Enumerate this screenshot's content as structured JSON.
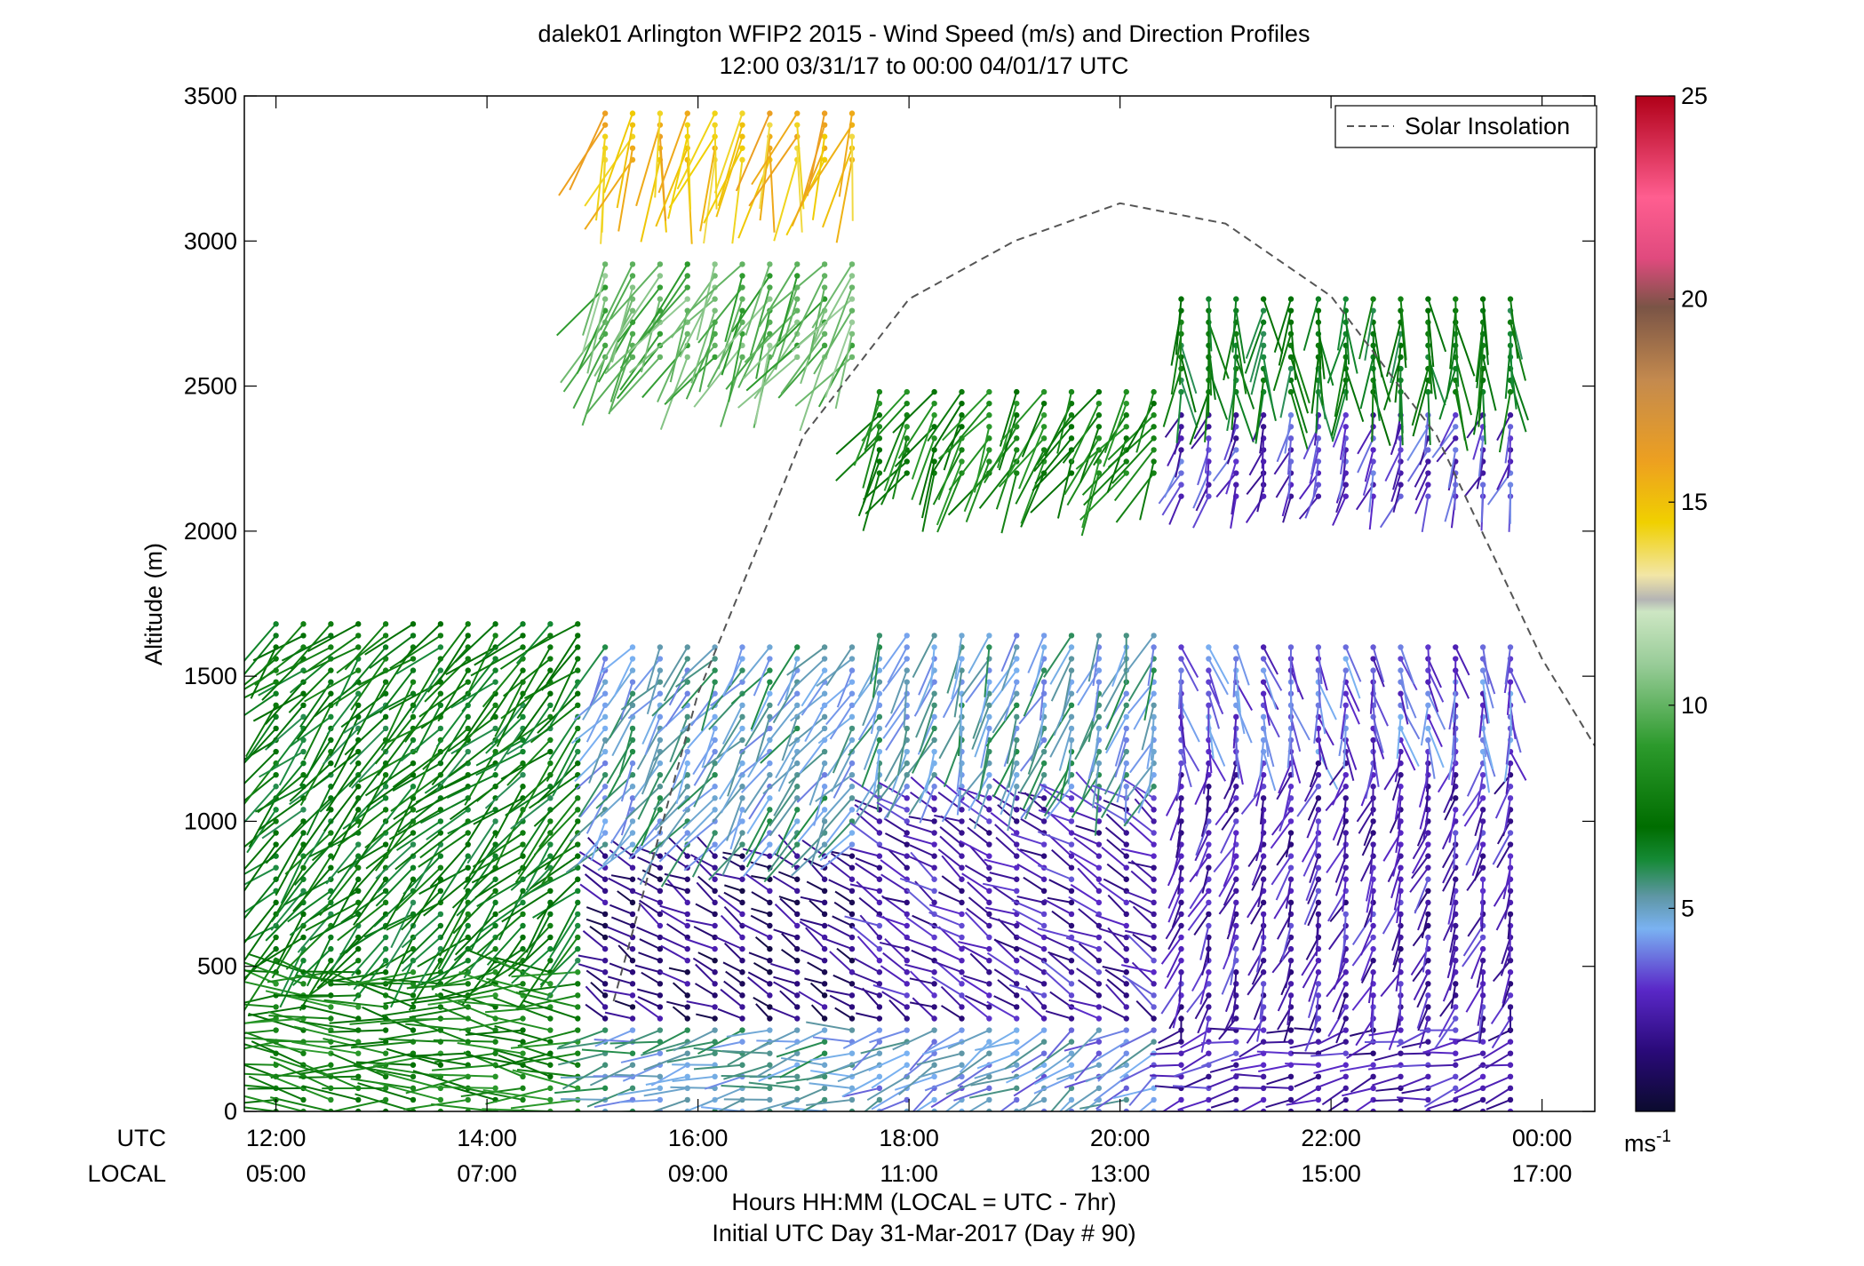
{
  "chart_data": {
    "type": "scatter",
    "title_line1": "dalek01 Arlington WFIP2 2015 - Wind Speed (m/s) and Direction Profiles",
    "title_line2": "12:00 03/31/17 to 00:00 04/01/17  UTC",
    "ylabel": "Altitude (m)",
    "xlabel_line1": "Hours HH:MM  (LOCAL = UTC - 7hr)",
    "xlabel_line2": "Initial UTC Day 31-Mar-2017 (Day # 90)",
    "utc_row_label": "UTC",
    "local_row_label": "LOCAL",
    "xlim_hours": [
      11.7,
      24.5
    ],
    "ylim": [
      0,
      3500
    ],
    "y_ticks": [
      {
        "value": 0,
        "label": "0"
      },
      {
        "value": 500,
        "label": "500"
      },
      {
        "value": 1000,
        "label": "1000"
      },
      {
        "value": 1500,
        "label": "1500"
      },
      {
        "value": 2000,
        "label": "2000"
      },
      {
        "value": 2500,
        "label": "2500"
      },
      {
        "value": 3000,
        "label": "3000"
      },
      {
        "value": 3500,
        "label": "3500"
      }
    ],
    "x_ticks": [
      {
        "hour": 12,
        "utc": "12:00",
        "local": "05:00"
      },
      {
        "hour": 14,
        "utc": "14:00",
        "local": "07:00"
      },
      {
        "hour": 16,
        "utc": "16:00",
        "local": "09:00"
      },
      {
        "hour": 18,
        "utc": "18:00",
        "local": "11:00"
      },
      {
        "hour": 20,
        "utc": "20:00",
        "local": "13:00"
      },
      {
        "hour": 22,
        "utc": "22:00",
        "local": "15:00"
      },
      {
        "hour": 24,
        "utc": "00:00",
        "local": "17:00"
      }
    ],
    "legend": {
      "label": "Solar Insolation",
      "position": "top-right",
      "style": "dashed gray line"
    },
    "colorbar": {
      "unit_base": "ms",
      "unit_exp": "-1",
      "range": [
        0,
        25
      ],
      "ticks": [
        {
          "value": 5,
          "label": "5"
        },
        {
          "value": 10,
          "label": "10"
        },
        {
          "value": 15,
          "label": "15"
        },
        {
          "value": 20,
          "label": "20"
        },
        {
          "value": 25,
          "label": "25"
        }
      ],
      "stops": [
        {
          "v": 0,
          "color": "#0b0b2e"
        },
        {
          "v": 1.5,
          "color": "#2a0a7a"
        },
        {
          "v": 3,
          "color": "#5a28c8"
        },
        {
          "v": 4.5,
          "color": "#7ab2f2"
        },
        {
          "v": 5.3,
          "color": "#5e96a4"
        },
        {
          "v": 6.2,
          "color": "#158a35"
        },
        {
          "v": 7,
          "color": "#006d00"
        },
        {
          "v": 9,
          "color": "#2c9a2c"
        },
        {
          "v": 11,
          "color": "#98cc98"
        },
        {
          "v": 12.3,
          "color": "#cde6c3"
        },
        {
          "v": 12.6,
          "color": "#b4b4b4"
        },
        {
          "v": 13.2,
          "color": "#f2e6a6"
        },
        {
          "v": 14.5,
          "color": "#f0d000"
        },
        {
          "v": 16,
          "color": "#eda020"
        },
        {
          "v": 18,
          "color": "#c48a4e"
        },
        {
          "v": 19.8,
          "color": "#7a5446"
        },
        {
          "v": 21,
          "color": "#e04a7e"
        },
        {
          "v": 22.5,
          "color": "#ff5e90"
        },
        {
          "v": 25,
          "color": "#b00018"
        }
      ]
    },
    "solar_insolation": {
      "description_units": "relative altitude-axis units",
      "peak_hour": 20.0,
      "peak_altitude": 3130,
      "points": [
        {
          "hour": 15.2,
          "altitude": 380
        },
        {
          "hour": 16.0,
          "altitude": 1440
        },
        {
          "hour": 17.0,
          "altitude": 2330
        },
        {
          "hour": 18.0,
          "altitude": 2800
        },
        {
          "hour": 19.0,
          "altitude": 3000
        },
        {
          "hour": 20.0,
          "altitude": 3130
        },
        {
          "hour": 21.0,
          "altitude": 3060
        },
        {
          "hour": 22.0,
          "altitude": 2810
        },
        {
          "hour": 23.0,
          "altitude": 2330
        },
        {
          "hour": 24.0,
          "altitude": 1560
        },
        {
          "hour": 24.5,
          "altitude": 1260
        }
      ]
    },
    "profile_times_hours": [
      12.0,
      12.26,
      12.52,
      12.78,
      13.04,
      13.3,
      13.56,
      13.82,
      14.08,
      14.34,
      14.6,
      14.86,
      15.12,
      15.38,
      15.64,
      15.9,
      16.16,
      16.42,
      16.68,
      16.94,
      17.2,
      17.46,
      17.72,
      17.98,
      18.24,
      18.5,
      18.76,
      19.02,
      19.28,
      19.54,
      19.8,
      20.06,
      20.32,
      20.58,
      20.84,
      21.1,
      21.36,
      21.62,
      21.88,
      22.14,
      22.4,
      22.66,
      22.92,
      23.18,
      23.44,
      23.7
    ],
    "wind_profiles_summary": [
      {
        "segment": "12:00-15:00",
        "layer": "0-500 m",
        "speed_ms": 8,
        "direction_deg": 275
      },
      {
        "segment": "12:00-15:00",
        "layer": "500-1700 m",
        "speed_ms": 7,
        "direction_deg": 225
      },
      {
        "segment": "15:00-17:30",
        "layer": "0-300 m",
        "speed_ms": 5,
        "direction_deg": 260
      },
      {
        "segment": "15:00-17:30",
        "layer": "300-900 m",
        "speed_ms": 1.5,
        "direction_deg": 300
      },
      {
        "segment": "15:00-17:30",
        "layer": "900-1600 m",
        "speed_ms": 5,
        "direction_deg": 215
      },
      {
        "segment": "15:00-17:30",
        "layer": "2600-2950 m",
        "speed_ms": 10,
        "direction_deg": 210
      },
      {
        "segment": "15:00-17:30",
        "layer": "3250-3450 m",
        "speed_ms": 15,
        "direction_deg": 195
      },
      {
        "segment": "17:30-20:30",
        "layer": "0-300 m",
        "speed_ms": 4.5,
        "direction_deg": 240
      },
      {
        "segment": "17:30-20:30",
        "layer": "300-1100 m",
        "speed_ms": 2.5,
        "direction_deg": 300
      },
      {
        "segment": "17:30-20:30",
        "layer": "1100-1650 m",
        "speed_ms": 5,
        "direction_deg": 200
      },
      {
        "segment": "17:30-20:30",
        "layer": "2200-2500 m",
        "speed_ms": 8,
        "direction_deg": 210
      },
      {
        "segment": "20:30-24:00",
        "layer": "0-300 m",
        "speed_ms": 2.5,
        "direction_deg": 255
      },
      {
        "segment": "20:30-24:00",
        "layer": "300-1200 m",
        "speed_ms": 2.5,
        "direction_deg": 200
      },
      {
        "segment": "20:30-24:00",
        "layer": "1200-1600 m",
        "speed_ms": 3.5,
        "direction_deg": 170
      },
      {
        "segment": "20:30-24:00",
        "layer": "2100-2400 m",
        "speed_ms": 3,
        "direction_deg": 200
      },
      {
        "segment": "20:30-24:00",
        "layer": "2450-2800 m",
        "speed_ms": 7,
        "direction_deg": 180
      }
    ]
  }
}
